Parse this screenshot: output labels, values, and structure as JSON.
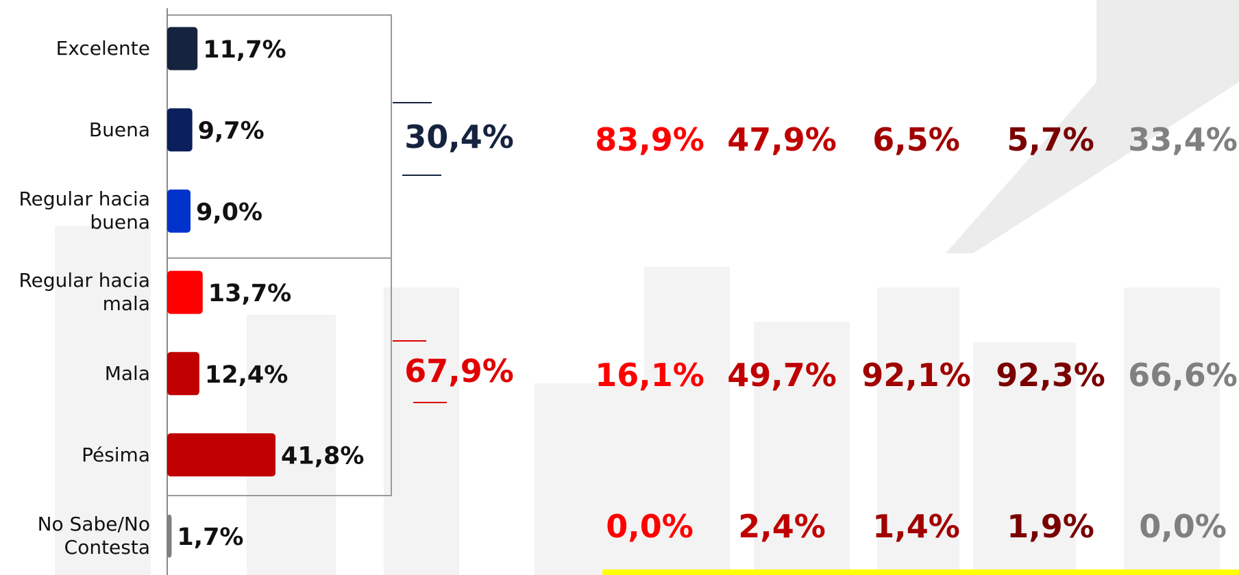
{
  "chart_data": {
    "type": "bar",
    "orientation": "horizontal",
    "categories": [
      "Excelente",
      "Buena",
      "Regular hacia buena",
      "Regular hacia mala",
      "Mala",
      "Pésima",
      "No Sabe/No Contesta"
    ],
    "values": [
      11.7,
      9.7,
      9.0,
      13.7,
      12.4,
      41.8,
      1.7
    ],
    "value_labels": [
      "11,7%",
      "9,7%",
      "9,0%",
      "13,7%",
      "12,4%",
      "41,8%",
      "1,7%"
    ],
    "colors": [
      "#15233f",
      "#0a1f5c",
      "#0033cc",
      "#ff0000",
      "#c00000",
      "#c00000",
      "#808080"
    ]
  },
  "summary": {
    "totals": [
      "30,4%",
      "67,9%"
    ],
    "total_colors": [
      "#15233f",
      "#e00000"
    ]
  },
  "table": {
    "column_colors": [
      "#ff0000",
      "#c00000",
      "#a00000",
      "#7a0000",
      "#808080"
    ],
    "rows": [
      [
        "83,9%",
        "47,9%",
        "6,5%",
        "5,7%",
        "33,4%"
      ],
      [
        "16,1%",
        "49,7%",
        "92,1%",
        "92,3%",
        "66,6%"
      ],
      [
        "0,0%",
        "2,4%",
        "1,4%",
        "1,9%",
        "0,0%"
      ]
    ]
  }
}
